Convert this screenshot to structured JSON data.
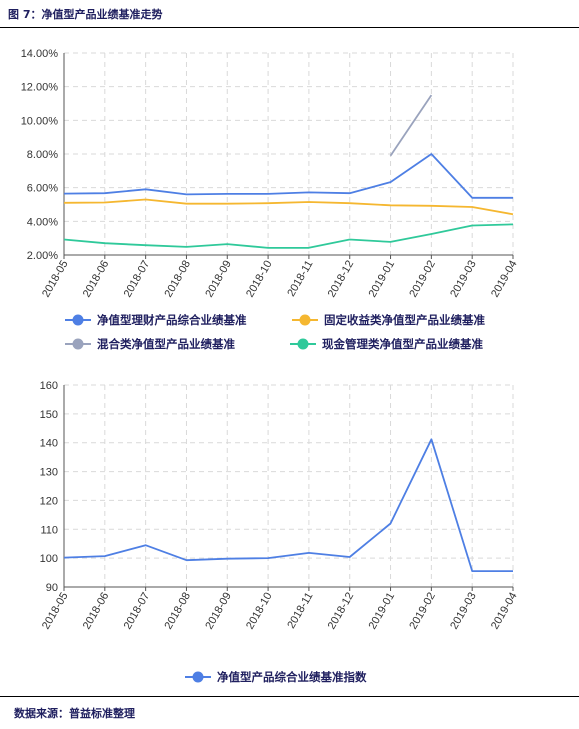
{
  "figure": {
    "title": "图 7：净值型产品业绩基准走势",
    "source": "数据来源：普益标准整理"
  },
  "chart_data": [
    {
      "type": "line",
      "categories": [
        "2018-05",
        "2018-06",
        "2018-07",
        "2018-08",
        "2018-09",
        "2018-10",
        "2018-11",
        "2018-12",
        "2019-01",
        "2019-02",
        "2019-03",
        "2019-04"
      ],
      "ylim": [
        2,
        14
      ],
      "yticks": [
        "2.00%",
        "4.00%",
        "6.00%",
        "8.00%",
        "10.00%",
        "12.00%",
        "14.00%"
      ],
      "grid": true,
      "legend_position": "bottom",
      "series": [
        {
          "name": "净值型理财产品综合业绩基准",
          "color": "#4e7fe4",
          "values": [
            5.65,
            5.67,
            5.9,
            5.6,
            5.63,
            5.63,
            5.72,
            5.67,
            6.33,
            8.0,
            5.4,
            5.4
          ]
        },
        {
          "name": "固定收益类净值型产品业绩基准",
          "color": "#f5b730",
          "values": [
            5.1,
            5.12,
            5.3,
            5.05,
            5.05,
            5.08,
            5.15,
            5.08,
            4.95,
            4.92,
            4.85,
            4.42
          ]
        },
        {
          "name": "混合类净值型产品业绩基准",
          "color": "#9aa3bd",
          "values": [
            null,
            null,
            null,
            null,
            null,
            null,
            null,
            null,
            7.9,
            11.5,
            null,
            null
          ]
        },
        {
          "name": "现金管理类净值型产品业绩基准",
          "color": "#2fc99a",
          "values": [
            2.92,
            2.7,
            2.58,
            2.48,
            2.65,
            2.42,
            2.43,
            2.92,
            2.78,
            3.25,
            3.75,
            3.82
          ]
        }
      ]
    },
    {
      "type": "line",
      "categories": [
        "2018-05",
        "2018-06",
        "2018-07",
        "2018-08",
        "2018-09",
        "2018-10",
        "2018-11",
        "2018-12",
        "2019-01",
        "2019-02",
        "2019-03",
        "2019-04"
      ],
      "ylim": [
        90,
        160
      ],
      "yticks": [
        "90",
        "100",
        "110",
        "120",
        "130",
        "140",
        "150",
        "160"
      ],
      "grid": true,
      "legend_position": "bottom",
      "series": [
        {
          "name": "净值型产品综合业绩基准指数",
          "color": "#4e7fe4",
          "values": [
            100.2,
            100.7,
            104.5,
            99.3,
            99.8,
            100.0,
            101.8,
            100.4,
            112.0,
            141.2,
            95.5,
            95.5
          ]
        }
      ]
    }
  ]
}
